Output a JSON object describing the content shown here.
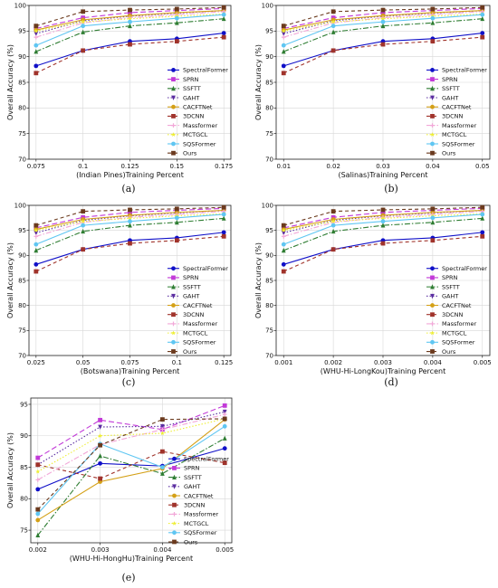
{
  "chart_data": [
    {
      "type": "line",
      "caption": "(a)",
      "xlabel": "(Indian Pines)Training Percent",
      "ylabel": "Overall Accuracy (%)",
      "x": [
        0.075,
        0.1,
        0.125,
        0.15,
        0.175
      ],
      "x_ticks": [
        "0.075",
        "0.1",
        "0.125",
        "0.15",
        "0.175"
      ],
      "ylim": [
        70,
        100
      ],
      "y_ticks": [
        "70",
        "75",
        "80",
        "85",
        "90",
        "95",
        "100"
      ],
      "grid": true,
      "legend": "right",
      "series": [
        {
          "name": "SpectralFormer",
          "values": [
            88.2,
            91.2,
            93.0,
            93.5,
            94.6
          ]
        },
        {
          "name": "SPRN",
          "values": [
            95.5,
            97.6,
            98.6,
            99.0,
            99.4
          ]
        },
        {
          "name": "SSFTT",
          "values": [
            91.0,
            94.8,
            96.0,
            96.6,
            97.4
          ]
        },
        {
          "name": "GAHT",
          "values": [
            94.5,
            97.0,
            97.9,
            98.5,
            99.0
          ]
        },
        {
          "name": "CACFTNet",
          "values": [
            95.2,
            97.2,
            98.0,
            98.6,
            99.0
          ]
        },
        {
          "name": "3DCNN",
          "values": [
            86.8,
            91.2,
            92.4,
            93.0,
            93.8
          ]
        },
        {
          "name": "Massformer",
          "values": [
            93.8,
            96.6,
            97.6,
            98.2,
            98.8
          ]
        },
        {
          "name": "MCTGCL",
          "values": [
            95.0,
            96.8,
            97.4,
            97.9,
            98.3
          ]
        },
        {
          "name": "SQSFormer",
          "values": [
            92.2,
            96.0,
            96.8,
            97.5,
            98.2
          ]
        },
        {
          "name": "Ours",
          "values": [
            96.0,
            98.8,
            99.1,
            99.3,
            99.6
          ]
        }
      ]
    },
    {
      "type": "line",
      "caption": "(b)",
      "xlabel": "(Salinas)Training Percent",
      "ylabel": "Overall Accuracy (%)",
      "x": [
        0.01,
        0.02,
        0.03,
        0.04,
        0.05
      ],
      "x_ticks": [
        "0.01",
        "0.02",
        "0.03",
        "0.04",
        "0.05"
      ],
      "ylim": [
        70,
        100
      ],
      "y_ticks": [
        "70",
        "75",
        "80",
        "85",
        "90",
        "95",
        "100"
      ],
      "grid": true,
      "legend": "right",
      "series": [
        {
          "name": "SpectralFormer",
          "values": [
            88.2,
            91.2,
            93.0,
            93.5,
            94.6
          ]
        },
        {
          "name": "SPRN",
          "values": [
            95.5,
            97.6,
            98.6,
            99.0,
            99.4
          ]
        },
        {
          "name": "SSFTT",
          "values": [
            91.0,
            94.8,
            96.0,
            96.6,
            97.4
          ]
        },
        {
          "name": "GAHT",
          "values": [
            94.5,
            97.0,
            97.9,
            98.5,
            99.0
          ]
        },
        {
          "name": "CACFTNet",
          "values": [
            95.2,
            97.2,
            98.0,
            98.6,
            99.0
          ]
        },
        {
          "name": "3DCNN",
          "values": [
            86.8,
            91.2,
            92.4,
            93.0,
            93.8
          ]
        },
        {
          "name": "Massformer",
          "values": [
            93.8,
            96.6,
            97.6,
            98.2,
            98.8
          ]
        },
        {
          "name": "MCTGCL",
          "values": [
            95.0,
            96.8,
            97.4,
            97.9,
            98.3
          ]
        },
        {
          "name": "SQSFormer",
          "values": [
            92.2,
            96.0,
            96.8,
            97.5,
            98.2
          ]
        },
        {
          "name": "Ours",
          "values": [
            96.0,
            98.8,
            99.1,
            99.3,
            99.6
          ]
        }
      ]
    },
    {
      "type": "line",
      "caption": "(c)",
      "xlabel": "(Botswana)Training Percent",
      "ylabel": "Overall Accuracy (%)",
      "x": [
        0.025,
        0.05,
        0.075,
        0.1,
        0.125
      ],
      "x_ticks": [
        "0.025",
        "0.05",
        "0.075",
        "0.1",
        "0.125"
      ],
      "ylim": [
        70,
        100
      ],
      "y_ticks": [
        "70",
        "75",
        "80",
        "85",
        "90",
        "95",
        "100"
      ],
      "grid": true,
      "legend": "right",
      "series": [
        {
          "name": "SpectralFormer",
          "values": [
            88.2,
            91.2,
            93.0,
            93.5,
            94.6
          ]
        },
        {
          "name": "SPRN",
          "values": [
            95.5,
            97.6,
            98.6,
            99.0,
            99.4
          ]
        },
        {
          "name": "SSFTT",
          "values": [
            91.0,
            94.8,
            96.0,
            96.6,
            97.4
          ]
        },
        {
          "name": "GAHT",
          "values": [
            94.5,
            97.0,
            97.9,
            98.5,
            99.0
          ]
        },
        {
          "name": "CACFTNet",
          "values": [
            95.2,
            97.2,
            98.0,
            98.6,
            99.0
          ]
        },
        {
          "name": "3DCNN",
          "values": [
            86.8,
            91.2,
            92.4,
            93.0,
            93.8
          ]
        },
        {
          "name": "Massformer",
          "values": [
            93.8,
            96.6,
            97.6,
            98.2,
            98.8
          ]
        },
        {
          "name": "MCTGCL",
          "values": [
            95.0,
            96.8,
            97.4,
            97.9,
            98.3
          ]
        },
        {
          "name": "SQSFormer",
          "values": [
            92.2,
            96.0,
            96.8,
            97.5,
            98.2
          ]
        },
        {
          "name": "Ours",
          "values": [
            96.0,
            98.8,
            99.1,
            99.3,
            99.6
          ]
        }
      ]
    },
    {
      "type": "line",
      "caption": "(d)",
      "xlabel": "(WHU-Hi-LongKou)Training Percent",
      "ylabel": "Overall Accuracy (%)",
      "x": [
        0.001,
        0.002,
        0.003,
        0.004,
        0.005
      ],
      "x_ticks": [
        "0.001",
        "0.002",
        "0.003",
        "0.004",
        "0.005"
      ],
      "ylim": [
        70,
        100
      ],
      "y_ticks": [
        "70",
        "75",
        "80",
        "85",
        "90",
        "95",
        "100"
      ],
      "grid": true,
      "legend": "right",
      "series": [
        {
          "name": "SpectralFormer",
          "values": [
            88.2,
            91.2,
            93.0,
            93.5,
            94.6
          ]
        },
        {
          "name": "SPRN",
          "values": [
            95.5,
            97.6,
            98.6,
            99.0,
            99.4
          ]
        },
        {
          "name": "SSFTT",
          "values": [
            91.0,
            94.8,
            96.0,
            96.6,
            97.4
          ]
        },
        {
          "name": "GAHT",
          "values": [
            94.5,
            97.0,
            97.9,
            98.5,
            99.0
          ]
        },
        {
          "name": "CACFTNet",
          "values": [
            95.2,
            97.2,
            98.0,
            98.6,
            99.0
          ]
        },
        {
          "name": "3DCNN",
          "values": [
            86.8,
            91.2,
            92.4,
            93.0,
            93.8
          ]
        },
        {
          "name": "Massformer",
          "values": [
            93.8,
            96.6,
            97.6,
            98.2,
            98.8
          ]
        },
        {
          "name": "MCTGCL",
          "values": [
            95.0,
            96.8,
            97.4,
            97.9,
            98.3
          ]
        },
        {
          "name": "SQSFormer",
          "values": [
            92.2,
            96.0,
            96.8,
            97.5,
            98.2
          ]
        },
        {
          "name": "Ours",
          "values": [
            96.0,
            98.8,
            99.1,
            99.3,
            99.6
          ]
        }
      ]
    },
    {
      "type": "line",
      "caption": "(e)",
      "xlabel": "(WHU-Hi-HongHu)Training Percent",
      "ylabel": "Overall Accuracy (%)",
      "x": [
        0.002,
        0.003,
        0.004,
        0.005
      ],
      "x_ticks": [
        "0.002",
        "0.003",
        "0.004",
        "0.005"
      ],
      "ylim": [
        73,
        96
      ],
      "y_ticks": [
        "75",
        "80",
        "85",
        "90",
        "95"
      ],
      "grid": true,
      "legend": "right",
      "series": [
        {
          "name": "SpectralFormer",
          "values": [
            81.5,
            85.6,
            85.2,
            88.0
          ]
        },
        {
          "name": "SPRN",
          "values": [
            86.5,
            92.5,
            91.0,
            94.8
          ]
        },
        {
          "name": "SSFTT",
          "values": [
            74.2,
            86.8,
            84.0,
            89.6
          ]
        },
        {
          "name": "GAHT",
          "values": [
            85.4,
            91.4,
            91.5,
            93.8
          ]
        },
        {
          "name": "CACFTNet",
          "values": [
            76.6,
            82.7,
            84.8,
            92.6
          ]
        },
        {
          "name": "3DCNN",
          "values": [
            85.4,
            83.2,
            87.5,
            85.7
          ]
        },
        {
          "name": "Massformer",
          "values": [
            83.0,
            88.6,
            91.0,
            93.4
          ]
        },
        {
          "name": "MCTGCL",
          "values": [
            84.3,
            90.0,
            90.4,
            92.7
          ]
        },
        {
          "name": "SQSFormer",
          "values": [
            77.6,
            88.7,
            85.0,
            91.5
          ]
        },
        {
          "name": "Ours",
          "values": [
            78.3,
            88.5,
            92.6,
            92.7
          ]
        }
      ]
    }
  ],
  "styles": {
    "SpectralFormer": {
      "color": "#1010c8",
      "dash": "",
      "marker": "circle"
    },
    "SPRN": {
      "color": "#c23ad8",
      "dash": "6,3",
      "marker": "square"
    },
    "SSFTT": {
      "color": "#2e7d32",
      "dash": "6,2,1.5,2",
      "marker": "triangle"
    },
    "GAHT": {
      "color": "#5a2ca0",
      "dash": "1.5,2",
      "marker": "tridown"
    },
    "CACFTNet": {
      "color": "#d4a017",
      "dash": "",
      "marker": "circle"
    },
    "3DCNN": {
      "color": "#a0332b",
      "dash": "4,3",
      "marker": "square"
    },
    "Massformer": {
      "color": "#f2a7d8",
      "dash": "6,2,1.5,2",
      "marker": "plus"
    },
    "MCTGCL": {
      "color": "#eeee33",
      "dash": "1.5,2",
      "marker": "star"
    },
    "SQSFormer": {
      "color": "#5fc6f2",
      "dash": "",
      "marker": "circle"
    },
    "Ours": {
      "color": "#6b3a1e",
      "dash": "4,3",
      "marker": "square"
    }
  }
}
